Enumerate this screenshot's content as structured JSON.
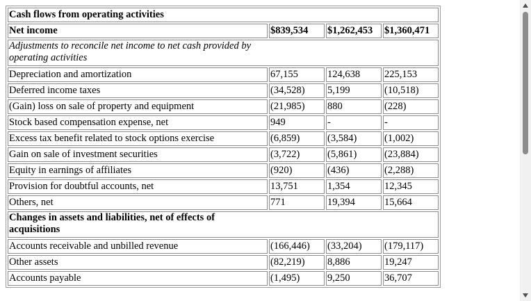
{
  "table": {
    "header": {
      "label": "Cash flows from operating activities"
    },
    "net_income": {
      "label": "Net income",
      "v1": "$839,534",
      "v2": "$1,262,453",
      "v3": "$1,360,471"
    },
    "adjustments_heading": "Adjustments to reconcile net income to net cash provided by operating activities",
    "adjustments": [
      {
        "label": "Depreciation and amortization",
        "v1": "67,155",
        "v2": "124,638",
        "v3": "225,153"
      },
      {
        "label": "Deferred income taxes",
        "v1": "(34,528)",
        "v2": "5,199",
        "v3": "(10,518)"
      },
      {
        "label": "(Gain) loss on sale of property and equipment",
        "v1": "(21,985)",
        "v2": "880",
        "v3": "(228)"
      },
      {
        "label": "Stock based compensation expense, net",
        "v1": "949",
        "v2": "-",
        "v3": "-"
      },
      {
        "label": "Excess tax benefit related to stock options exercise",
        "v1": "(6,859)",
        "v2": "(3,584)",
        "v3": "(1,002)"
      },
      {
        "label": "Gain on sale of investment securities",
        "v1": "(3,722)",
        "v2": "(5,861)",
        "v3": "(23,884)"
      },
      {
        "label": "Equity in earnings of affiliates",
        "v1": "(920)",
        "v2": "(436)",
        "v3": "(2,288)"
      },
      {
        "label": "Provision for doubtful accounts, net",
        "v1": "13,751",
        "v2": "1,354",
        "v3": "12,345"
      },
      {
        "label": "Others, net",
        "v1": "771",
        "v2": "19,394",
        "v3": "15,664"
      }
    ],
    "changes_heading": "Changes in assets and liabilities, net of effects of acquisitions",
    "changes": [
      {
        "label": "Accounts receivable and unbilled revenue",
        "v1": "(166,446)",
        "v2": "(33,204)",
        "v3": "(179,117)"
      },
      {
        "label": "Other assets",
        "v1": "(82,219)",
        "v2": "8,886",
        "v3": "19,247"
      },
      {
        "label": "Accounts payable",
        "v1": "(1,495)",
        "v2": "9,250",
        "v3": "36,707"
      }
    ]
  }
}
